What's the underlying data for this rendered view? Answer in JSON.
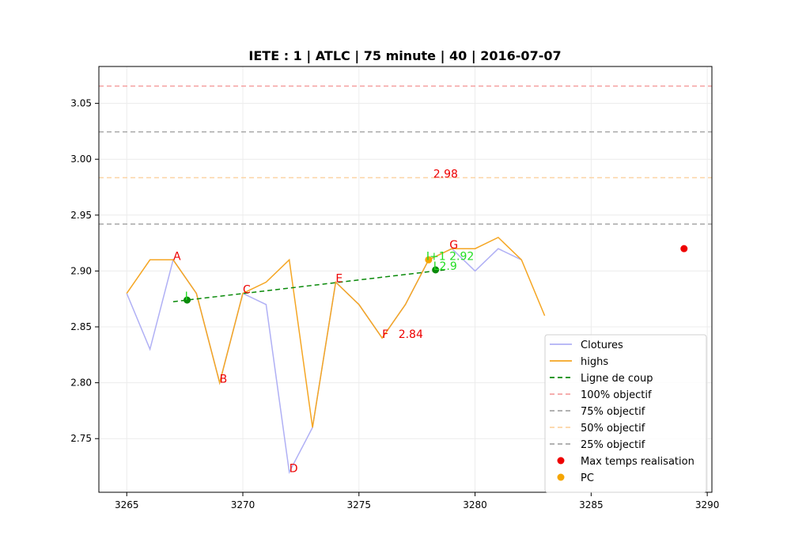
{
  "chart_data": {
    "type": "line",
    "title": "IETE : 1 | ATLC | 75 minute | 40 | 2016-07-07",
    "xlabel": "",
    "ylabel": "",
    "xlim": [
      3263.8,
      3290.2
    ],
    "ylim": [
      2.702,
      3.083
    ],
    "x_ticks": [
      3265,
      3270,
      3275,
      3280,
      3285,
      3290
    ],
    "y_ticks": [
      2.75,
      2.8,
      2.85,
      2.9,
      2.95,
      3.0,
      3.05
    ],
    "grid": true,
    "legend_position": "lower-right",
    "series": [
      {
        "name": "Clotures",
        "kind": "line",
        "color": "#b0b0f5",
        "dash": "",
        "x": [
          3265,
          3266,
          3267,
          3268,
          3269,
          3270,
          3271,
          3272,
          3273,
          3274,
          3275,
          3276,
          3277,
          3278,
          3279,
          3280,
          3281,
          3282
        ],
        "y": [
          2.88,
          2.83,
          2.91,
          2.88,
          2.8,
          2.88,
          2.87,
          2.72,
          2.76,
          2.89,
          2.87,
          2.84,
          2.87,
          2.91,
          2.92,
          2.9,
          2.92,
          2.91
        ]
      },
      {
        "name": "highs",
        "kind": "line",
        "color": "#f5a623",
        "dash": "",
        "x": [
          3265,
          3266,
          3267,
          3268,
          3269,
          3270,
          3271,
          3272,
          3273,
          3274,
          3275,
          3276,
          3277,
          3278,
          3279,
          3280,
          3281,
          3282,
          3283
        ],
        "y": [
          2.88,
          2.91,
          2.91,
          2.88,
          2.8,
          2.88,
          2.89,
          2.91,
          2.76,
          2.89,
          2.87,
          2.84,
          2.87,
          2.91,
          2.92,
          2.92,
          2.93,
          2.91,
          2.86
        ]
      },
      {
        "name": "Ligne de coup",
        "kind": "line",
        "color": "#0a8a0a",
        "dash": "6,4",
        "x": [
          3267.0,
          3278.7
        ],
        "y": [
          2.8725,
          2.901
        ]
      },
      {
        "name": "100% objectif",
        "kind": "hline",
        "color": "#f5a3a3",
        "dash": "6,4",
        "y": 3.0655
      },
      {
        "name": "75% objectif",
        "kind": "hline",
        "color": "#a8a8a8",
        "dash": "6,4",
        "y": 3.0245
      },
      {
        "name": "50% objectif",
        "kind": "hline",
        "color": "#fbd5a5",
        "dash": "6,4",
        "y": 2.9835
      },
      {
        "name": "25% objectif",
        "kind": "hline",
        "color": "#a8a8a8",
        "dash": "6,4",
        "y": 2.942
      },
      {
        "name": "Max temps realisation",
        "kind": "scatter",
        "color": "#ee0000",
        "x": [
          3289
        ],
        "y": [
          2.92
        ]
      },
      {
        "name": "PC",
        "kind": "scatter",
        "color": "#f5a500",
        "x": [
          3278
        ],
        "y": [
          2.91
        ]
      }
    ],
    "green_points": {
      "color": "#0a8a0a",
      "x": [
        3267.6,
        3278.3
      ],
      "y": [
        2.874,
        2.901
      ]
    },
    "annotations": [
      {
        "text": "A",
        "x": 3267.0,
        "y": 2.91,
        "color": "#ee0000"
      },
      {
        "text": "B",
        "x": 3269.0,
        "y": 2.8,
        "color": "#ee0000"
      },
      {
        "text": "C",
        "x": 3270.0,
        "y": 2.88,
        "color": "#ee0000"
      },
      {
        "text": "D",
        "x": 3272.0,
        "y": 2.72,
        "color": "#ee0000"
      },
      {
        "text": "E",
        "x": 3274.0,
        "y": 2.89,
        "color": "#ee0000"
      },
      {
        "text": "F",
        "x": 3276.0,
        "y": 2.84,
        "color": "#ee0000"
      },
      {
        "text": "2.84",
        "x": 3276.7,
        "y": 2.84,
        "color": "#ee0000"
      },
      {
        "text": "G",
        "x": 3278.9,
        "y": 2.92,
        "color": "#ee0000"
      },
      {
        "text": "2.98",
        "x": 3278.2,
        "y": 2.9835,
        "color": "#ee0000"
      },
      {
        "text": "I",
        "x": 3267.5,
        "y": 2.874,
        "color": "#22dd22"
      },
      {
        "text": "I+1 2.92",
        "x": 3277.9,
        "y": 2.91,
        "color": "#22dd22"
      },
      {
        "text": "L2.9",
        "x": 3278.2,
        "y": 2.901,
        "color": "#22dd22"
      }
    ]
  }
}
